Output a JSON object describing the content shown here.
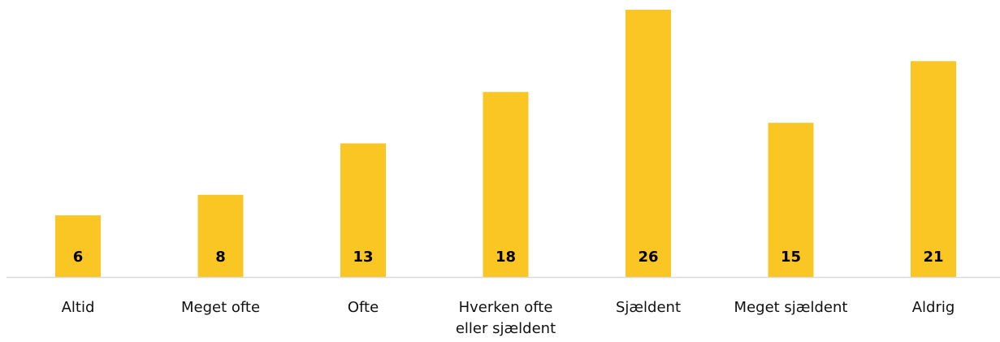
{
  "chart_data": {
    "type": "bar",
    "categories": [
      "Altid",
      "Meget ofte",
      "Ofte",
      "Hverken ofte eller sjældent",
      "Sjældent",
      "Meget sjældent",
      "Aldrig"
    ],
    "values": [
      6,
      8,
      13,
      18,
      26,
      15,
      21
    ],
    "color": "#f9c623"
  }
}
